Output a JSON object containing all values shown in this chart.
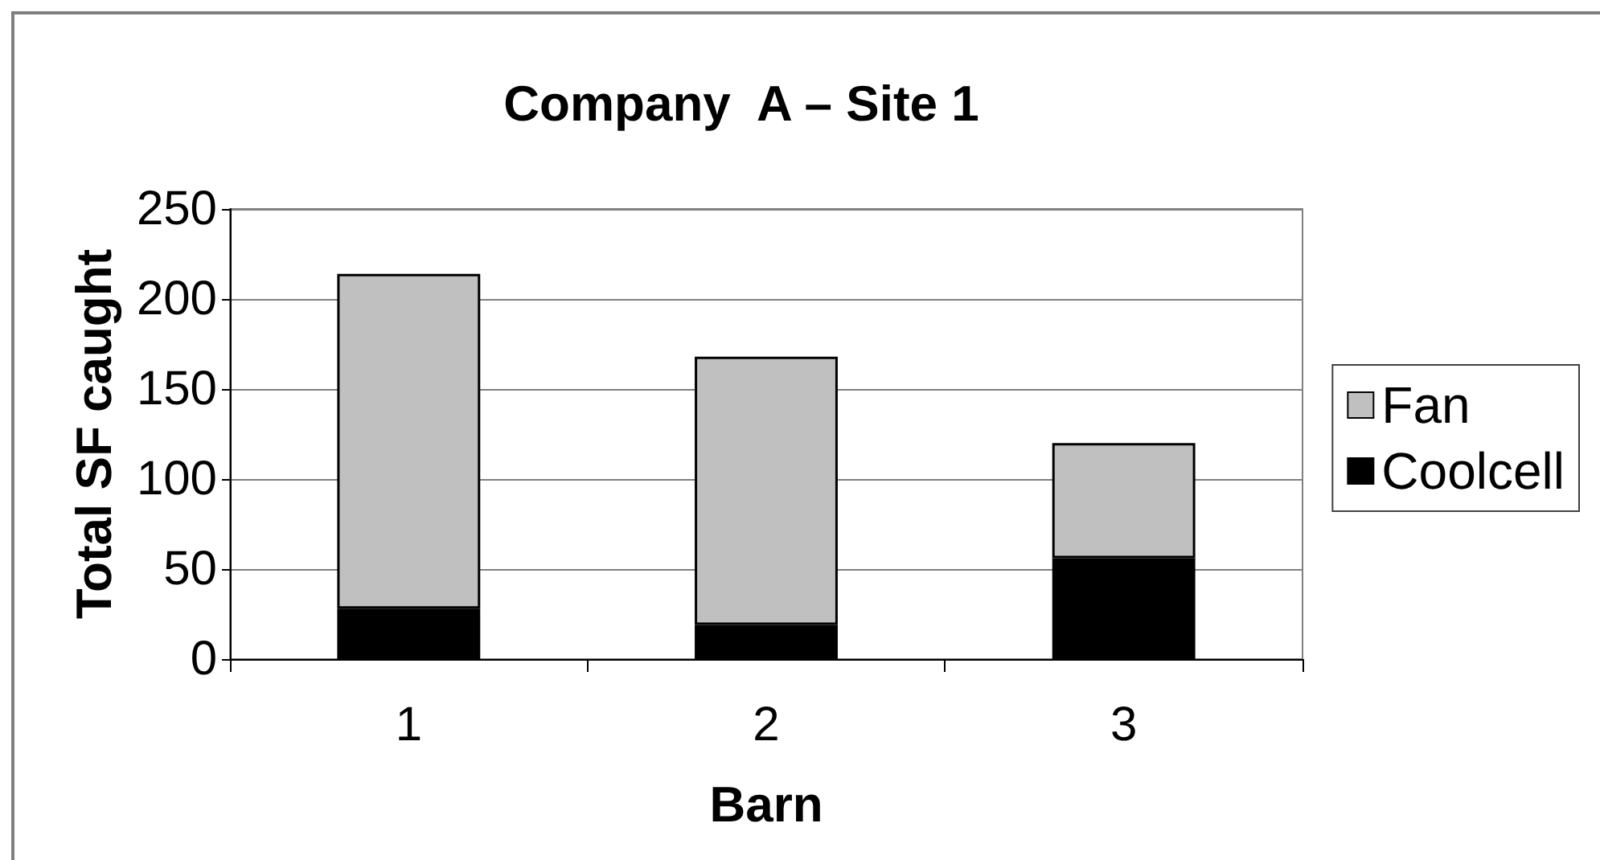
{
  "chart_data": {
    "type": "bar",
    "title": "Company  A – Site 1",
    "xlabel": "Barn",
    "ylabel": "Total SF caught",
    "categories": [
      "1",
      "2",
      "3"
    ],
    "series": [
      {
        "name": "Coolcell",
        "color": "#000000",
        "values": [
          28,
          19,
          56
        ]
      },
      {
        "name": "Fan",
        "color": "#c0c0c0",
        "values": [
          186,
          149,
          64
        ]
      }
    ],
    "stacked": true,
    "ylim": [
      0,
      250
    ],
    "yticks": [
      0,
      50,
      100,
      150,
      200,
      250
    ],
    "grid": "y",
    "legend": "right"
  }
}
